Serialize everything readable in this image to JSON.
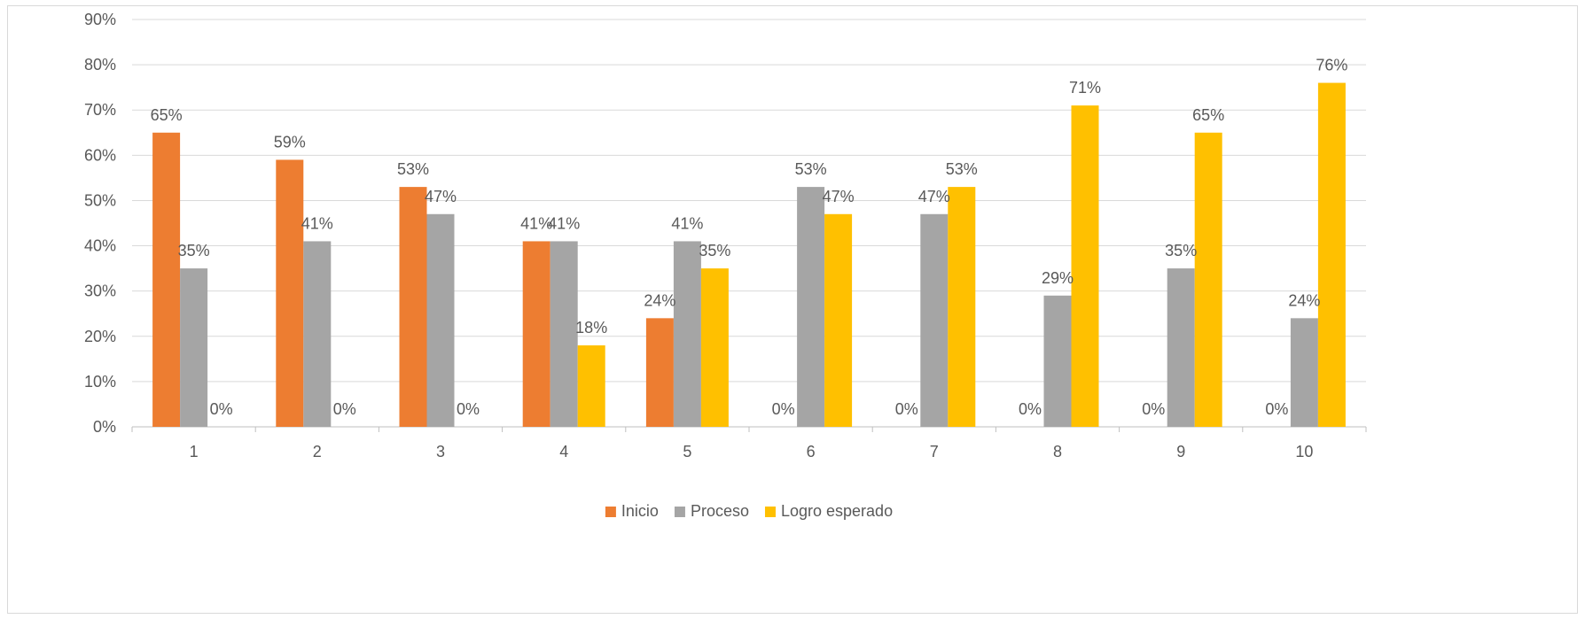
{
  "chart_data": {
    "type": "bar",
    "categories": [
      "1",
      "2",
      "3",
      "4",
      "5",
      "6",
      "7",
      "8",
      "9",
      "10"
    ],
    "series": [
      {
        "name": "Inicio",
        "color": "#ED7D31",
        "values": [
          65,
          59,
          53,
          41,
          24,
          0,
          0,
          0,
          0,
          0
        ],
        "labels": [
          "65%",
          "59%",
          "53%",
          "41%",
          "24%",
          "0%",
          "0%",
          "0%",
          "0%",
          "0%"
        ]
      },
      {
        "name": "Proceso",
        "color": "#A5A5A5",
        "values": [
          35,
          41,
          47,
          41,
          41,
          53,
          47,
          29,
          35,
          24
        ],
        "labels": [
          "35%",
          "41%",
          "47%",
          "41%",
          "41%",
          "53%",
          "47%",
          "29%",
          "35%",
          "24%"
        ]
      },
      {
        "name": "Logro esperado",
        "color": "#FFC000",
        "values": [
          0,
          0,
          0,
          18,
          35,
          47,
          53,
          71,
          65,
          76
        ],
        "labels": [
          "0%",
          "0%",
          "0%",
          "18%",
          "35%",
          "47%",
          "53%",
          "71%",
          "65%",
          "76%"
        ]
      }
    ],
    "y_ticks": [
      "0%",
      "10%",
      "20%",
      "30%",
      "40%",
      "50%",
      "60%",
      "70%",
      "80%",
      "90%"
    ],
    "ylim": [
      0,
      90
    ],
    "grid": true,
    "legend_position": "bottom",
    "title": "",
    "xlabel": "",
    "ylabel": ""
  }
}
